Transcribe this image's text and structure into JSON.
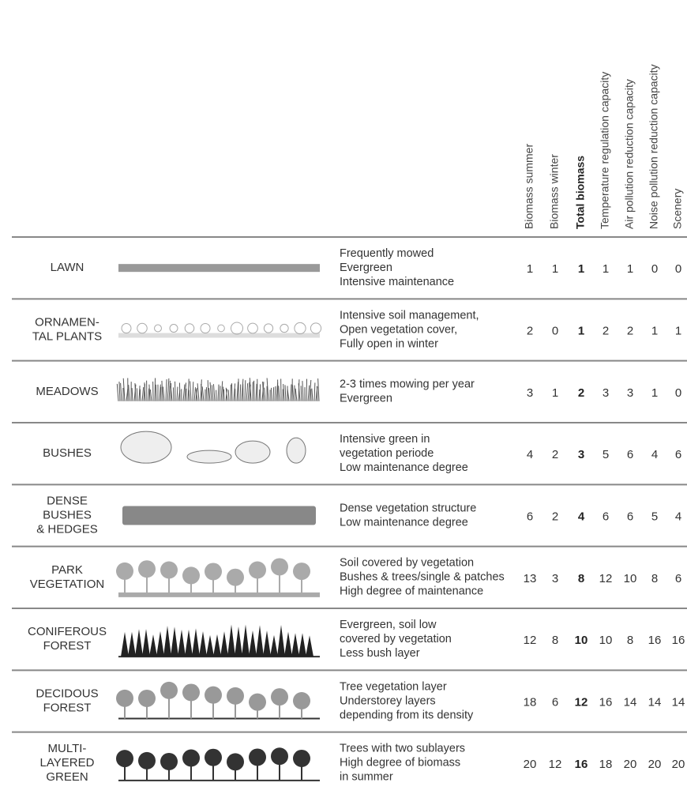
{
  "columns": [
    "Biomass summer",
    "Biomass winter",
    "Total biomass",
    "Temperature regulation capacity",
    "Air pollution reduction capacity",
    "Noise pollution reduction capacity",
    "Scenery"
  ],
  "rows": [
    {
      "name": [
        "LAWN"
      ],
      "description": [
        "Frequently mowed",
        "Evergreen",
        "Intensive maintenance"
      ],
      "values": [
        1,
        1,
        1,
        1,
        1,
        0,
        0
      ]
    },
    {
      "name": [
        "ORNAMEN-",
        "TAL PLANTS"
      ],
      "description": [
        "Intensive soil management,",
        "Open vegetation cover,",
        "Fully open in winter"
      ],
      "values": [
        2,
        0,
        1,
        2,
        2,
        1,
        1
      ]
    },
    {
      "name": [
        "MEADOWS"
      ],
      "description": [
        "2-3 times mowing per year",
        "Evergreen"
      ],
      "values": [
        3,
        1,
        2,
        3,
        3,
        1,
        0
      ]
    },
    {
      "name": [
        "BUSHES"
      ],
      "description": [
        "Intensive green in",
        "vegetation periode",
        "Low maintenance degree"
      ],
      "values": [
        4,
        2,
        3,
        5,
        6,
        4,
        6
      ]
    },
    {
      "name": [
        "DENSE",
        "BUSHES",
        "& HEDGES"
      ],
      "description": [
        "Dense vegetation structure",
        "Low maintenance degree"
      ],
      "values": [
        6,
        2,
        4,
        6,
        6,
        5,
        4
      ]
    },
    {
      "name": [
        "PARK",
        "VEGETATION"
      ],
      "description": [
        "Soil covered by vegetation",
        "Bushes & trees/single & patches",
        "High degree of maintenance"
      ],
      "values": [
        13,
        3,
        8,
        12,
        10,
        8,
        6
      ]
    },
    {
      "name": [
        "CONIFEROUS",
        "FOREST"
      ],
      "description": [
        "Evergreen, soil low",
        "covered by vegetation",
        "Less bush layer"
      ],
      "values": [
        12,
        8,
        10,
        10,
        8,
        16,
        16
      ]
    },
    {
      "name": [
        "DECIDOUS",
        "FOREST"
      ],
      "description": [
        "Tree vegetation layer",
        "Understorey layers",
        "depending from its density"
      ],
      "values": [
        18,
        6,
        12,
        16,
        14,
        14,
        14
      ]
    },
    {
      "name": [
        "MULTI-",
        "LAYERED",
        "GREEN"
      ],
      "description": [
        "Trees with two sublayers",
        "High degree of biomass",
        "in summer"
      ],
      "values": [
        20,
        12,
        16,
        18,
        20,
        20,
        20
      ]
    }
  ]
}
